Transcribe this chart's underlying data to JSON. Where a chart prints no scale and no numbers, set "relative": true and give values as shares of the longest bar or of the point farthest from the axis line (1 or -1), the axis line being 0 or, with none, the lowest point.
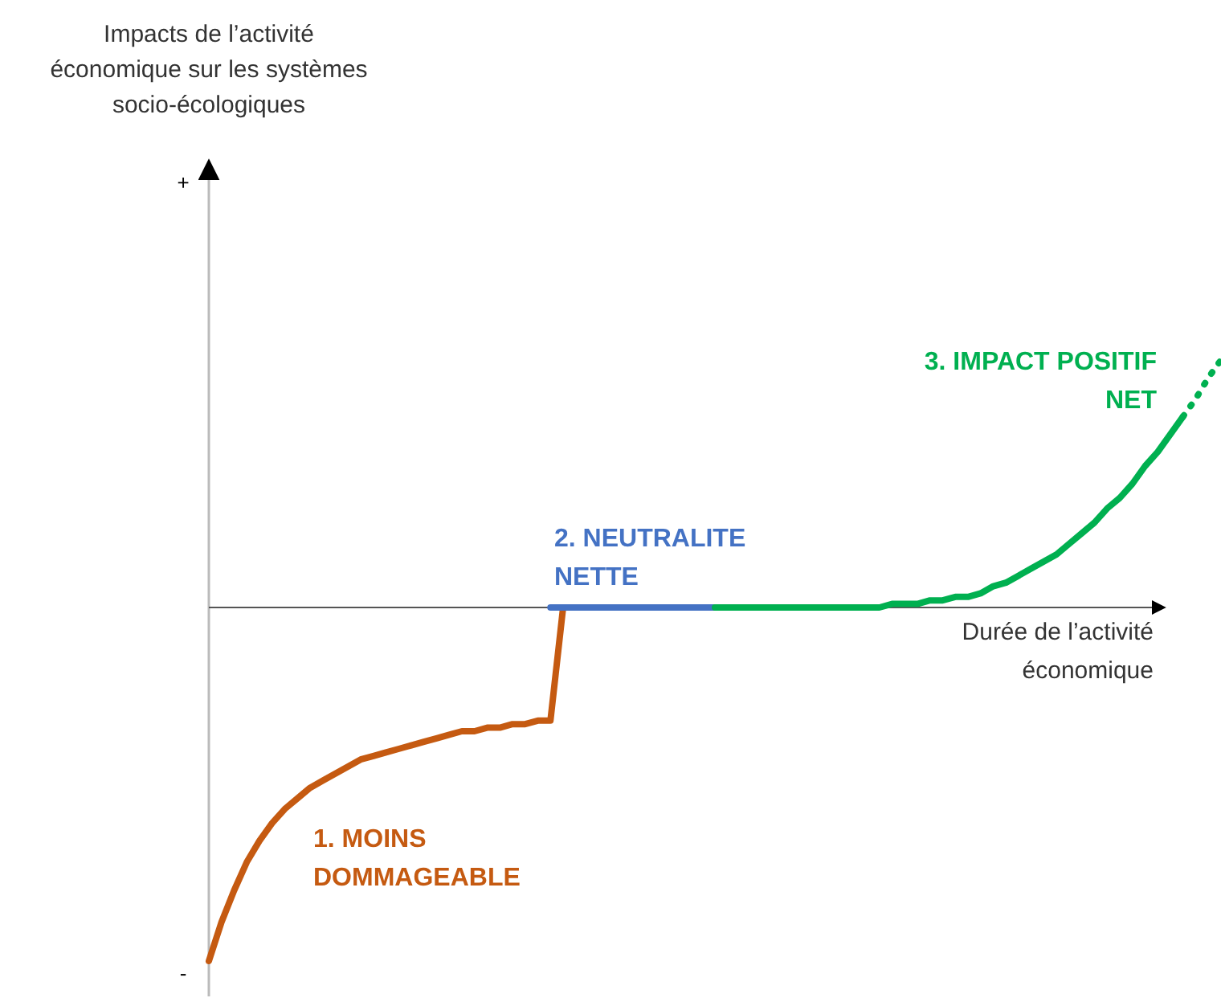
{
  "chart_data": {
    "type": "line",
    "relative": true,
    "xlabel": "Durée de l’activité économique",
    "annotations": [
      "Impacts de l’activité économique sur les systèmes socio-écologiques",
      "+",
      "-"
    ],
    "line_style": "solid",
    "marker": "none",
    "categories": [
      null,
      null,
      null,
      null,
      null,
      null,
      null,
      null,
      null,
      null,
      null,
      null,
      null,
      null,
      null,
      null,
      null,
      null,
      null,
      null,
      null,
      null,
      null,
      null,
      null,
      null,
      null,
      null,
      null,
      null,
      null,
      null,
      null,
      null,
      null,
      null,
      null,
      null,
      null,
      null,
      null,
      null,
      null,
      null,
      null,
      null,
      null,
      null,
      null,
      null,
      null,
      null,
      null,
      null,
      null,
      null,
      null,
      null,
      null,
      null,
      null,
      null,
      null,
      null,
      null,
      null,
      null,
      null,
      null,
      null,
      null,
      null,
      null,
      null,
      null,
      null,
      null,
      null,
      null,
      null,
      null
    ],
    "series": [
      {
        "name": "1. MOINS DOMMAGEABLE",
        "color": "#c55a11",
        "values": [
          -1,
          -0.89,
          -0.8,
          -0.72,
          -0.66,
          -0.61,
          -0.57,
          -0.54,
          -0.51,
          -0.49,
          -0.47,
          -0.45,
          -0.43,
          -0.42,
          -0.41,
          -0.4,
          -0.39,
          -0.38,
          -0.37,
          -0.36,
          -0.35,
          -0.35,
          -0.34,
          -0.34,
          -0.33,
          -0.33,
          -0.32,
          -0.32,
          0,
          null,
          null,
          null,
          null,
          null,
          null,
          null,
          null,
          null,
          null,
          null,
          null,
          null,
          null,
          null,
          null,
          null,
          null,
          null,
          null,
          null,
          null,
          null,
          null,
          null,
          null,
          null,
          null,
          null,
          null,
          null,
          null,
          null,
          null,
          null,
          null,
          null,
          null,
          null,
          null,
          null,
          null,
          null,
          null,
          null,
          null,
          null,
          null,
          null,
          null,
          null,
          null
        ]
      },
      {
        "name": "2. NEUTRALITE NETTE",
        "color": "#4472c4",
        "values": [
          null,
          null,
          null,
          null,
          null,
          null,
          null,
          null,
          null,
          null,
          null,
          null,
          null,
          null,
          null,
          null,
          null,
          null,
          null,
          null,
          null,
          null,
          null,
          null,
          null,
          null,
          null,
          0,
          0,
          0,
          0,
          0,
          0,
          0,
          0,
          0,
          0,
          0,
          0,
          0,
          0,
          null,
          null,
          null,
          null,
          null,
          null,
          null,
          null,
          null,
          null,
          null,
          null,
          null,
          null,
          null,
          null,
          null,
          null,
          null,
          null,
          null,
          null,
          null,
          null,
          null,
          null,
          null,
          null,
          null,
          null,
          null,
          null,
          null,
          null,
          null,
          null,
          null,
          null,
          null,
          null
        ]
      },
      {
        "name": "3. IMPACT POSITIF NET",
        "color": "#00b050",
        "values": [
          null,
          null,
          null,
          null,
          null,
          null,
          null,
          null,
          null,
          null,
          null,
          null,
          null,
          null,
          null,
          null,
          null,
          null,
          null,
          null,
          null,
          null,
          null,
          null,
          null,
          null,
          null,
          null,
          null,
          null,
          null,
          null,
          null,
          null,
          null,
          null,
          null,
          null,
          null,
          null,
          0,
          0,
          0,
          0,
          0,
          0,
          0,
          0,
          0,
          0,
          0,
          0,
          0,
          0,
          0.01,
          0.01,
          0.01,
          0.02,
          0.02,
          0.03,
          0.03,
          0.04,
          0.06,
          0.07,
          0.09,
          0.11,
          0.13,
          0.15,
          0.18,
          0.21,
          0.24,
          0.28,
          0.31,
          0.35,
          0.4,
          0.44,
          0.49,
          0.54,
          null,
          null,
          null
        ]
      },
      {
        "color": "#00b050",
        "line_style": "dotted",
        "values": [
          null,
          null,
          null,
          null,
          null,
          null,
          null,
          null,
          null,
          null,
          null,
          null,
          null,
          null,
          null,
          null,
          null,
          null,
          null,
          null,
          null,
          null,
          null,
          null,
          null,
          null,
          null,
          null,
          null,
          null,
          null,
          null,
          null,
          null,
          null,
          null,
          null,
          null,
          null,
          null,
          null,
          null,
          null,
          null,
          null,
          null,
          null,
          null,
          null,
          null,
          null,
          null,
          null,
          null,
          null,
          null,
          null,
          null,
          null,
          null,
          null,
          null,
          null,
          null,
          null,
          null,
          null,
          null,
          null,
          null,
          null,
          null,
          null,
          null,
          null,
          null,
          null,
          0.54,
          0.59,
          0.65,
          0.7
        ]
      }
    ]
  }
}
